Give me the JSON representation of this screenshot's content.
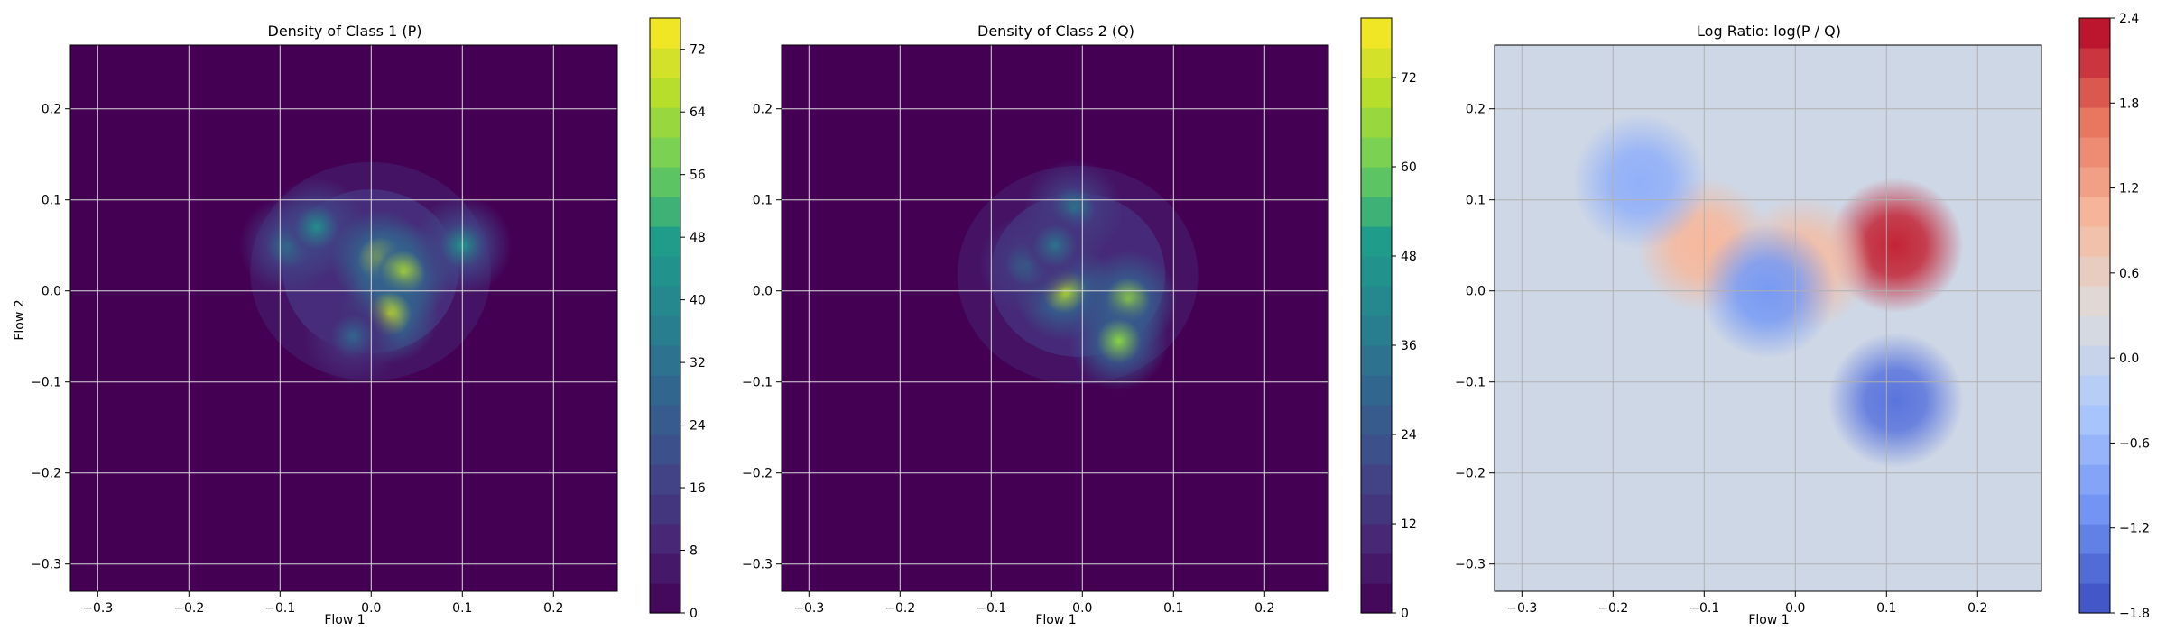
{
  "chart_data": [
    {
      "type": "heatmap",
      "title": "Density of Class 1 (P)",
      "xlabel": "Flow 1",
      "ylabel": "Flow 2",
      "xlim": [
        -0.33,
        0.27
      ],
      "ylim": [
        -0.33,
        0.27
      ],
      "xticks": [
        -0.3,
        -0.2,
        -0.1,
        0.0,
        0.1,
        0.2
      ],
      "xtick_labels": [
        "−0.3",
        "−0.2",
        "−0.1",
        "0.0",
        "0.1",
        "0.2"
      ],
      "yticks": [
        -0.3,
        -0.2,
        -0.1,
        0.0,
        0.1,
        0.2
      ],
      "ytick_labels": [
        "−0.3",
        "−0.2",
        "−0.1",
        "0.0",
        "0.1",
        "0.2"
      ],
      "grid": true,
      "colormap": "viridis",
      "colorbar": {
        "range": [
          0,
          76
        ],
        "ticks": [
          0,
          8,
          16,
          24,
          32,
          40,
          48,
          56,
          64,
          72
        ],
        "tick_labels": [
          "0",
          "8",
          "16",
          "24",
          "32",
          "40",
          "48",
          "56",
          "64",
          "72"
        ]
      },
      "peaks": [
        {
          "x": -0.09,
          "y": 0.05,
          "height": 40
        },
        {
          "x": -0.06,
          "y": 0.07,
          "height": 42
        },
        {
          "x": 0.01,
          "y": 0.035,
          "height": 70
        },
        {
          "x": 0.035,
          "y": 0.02,
          "height": 66
        },
        {
          "x": 0.02,
          "y": -0.025,
          "height": 68
        },
        {
          "x": 0.1,
          "y": 0.05,
          "height": 44
        },
        {
          "x": -0.02,
          "y": -0.05,
          "height": 28
        }
      ]
    },
    {
      "type": "heatmap",
      "title": "Density of Class 2 (Q)",
      "xlabel": "Flow 1",
      "ylabel": "",
      "xlim": [
        -0.33,
        0.27
      ],
      "ylim": [
        -0.33,
        0.27
      ],
      "xticks": [
        -0.3,
        -0.2,
        -0.1,
        0.0,
        0.1,
        0.2
      ],
      "xtick_labels": [
        "−0.3",
        "−0.2",
        "−0.1",
        "0.0",
        "0.1",
        "0.2"
      ],
      "yticks": [
        -0.3,
        -0.2,
        -0.1,
        0.0,
        0.1,
        0.2
      ],
      "ytick_labels": [
        "−0.3",
        "−0.2",
        "−0.1",
        "0.0",
        "0.1",
        "0.2"
      ],
      "grid": true,
      "colormap": "viridis",
      "colorbar": {
        "range": [
          0,
          80
        ],
        "ticks": [
          0,
          12,
          24,
          36,
          48,
          60,
          72
        ],
        "tick_labels": [
          "0",
          "12",
          "24",
          "36",
          "48",
          "60",
          "72"
        ]
      },
      "peaks": [
        {
          "x": -0.02,
          "y": 0.0,
          "height": 70
        },
        {
          "x": 0.05,
          "y": -0.01,
          "height": 66
        },
        {
          "x": 0.04,
          "y": -0.055,
          "height": 64
        },
        {
          "x": -0.01,
          "y": 0.09,
          "height": 40
        },
        {
          "x": -0.06,
          "y": 0.03,
          "height": 36
        },
        {
          "x": -0.03,
          "y": 0.05,
          "height": 34
        }
      ]
    },
    {
      "type": "heatmap",
      "title": "Log Ratio: log(P / Q)",
      "xlabel": "Flow 1",
      "ylabel": "",
      "xlim": [
        -0.33,
        0.27
      ],
      "ylim": [
        -0.33,
        0.27
      ],
      "xticks": [
        -0.3,
        -0.2,
        -0.1,
        0.0,
        0.1,
        0.2
      ],
      "xtick_labels": [
        "−0.3",
        "−0.2",
        "−0.1",
        "0.0",
        "0.1",
        "0.2"
      ],
      "yticks": [
        -0.3,
        -0.2,
        -0.1,
        0.0,
        0.1,
        0.2
      ],
      "ytick_labels": [
        "−0.3",
        "−0.2",
        "−0.1",
        "0.0",
        "0.1",
        "0.2"
      ],
      "grid": true,
      "colormap": "coolwarm",
      "colorbar": {
        "range": [
          -1.8,
          2.4
        ],
        "ticks": [
          -1.8,
          -1.2,
          -0.6,
          0.0,
          0.6,
          1.2,
          1.8,
          2.4
        ],
        "tick_labels": [
          "−1.8",
          "−1.2",
          "−0.6",
          "0.0",
          "0.6",
          "1.2",
          "1.8",
          "2.4"
        ]
      },
      "peaks": [
        {
          "x": 0.11,
          "y": 0.05,
          "height": 2.2
        },
        {
          "x": -0.1,
          "y": 0.05,
          "height": 1.0
        },
        {
          "x": 0.01,
          "y": 0.03,
          "height": 0.9
        },
        {
          "x": 0.11,
          "y": -0.12,
          "height": -1.4
        },
        {
          "x": -0.03,
          "y": 0.0,
          "height": -1.0
        },
        {
          "x": -0.17,
          "y": 0.12,
          "height": -0.7
        }
      ]
    }
  ]
}
